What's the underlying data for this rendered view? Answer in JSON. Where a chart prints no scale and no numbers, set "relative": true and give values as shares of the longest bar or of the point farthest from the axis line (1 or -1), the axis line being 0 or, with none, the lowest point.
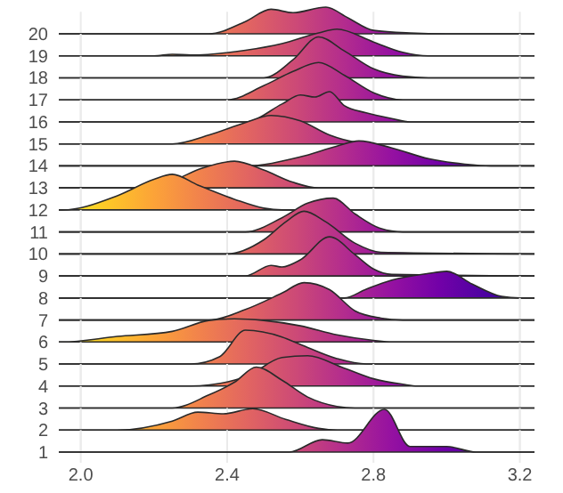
{
  "chart_data": [
    {
      "type": "area",
      "relative": true,
      "xlim": [
        1.94,
        3.24
      ],
      "xticks": [
        {
          "value": 2.0,
          "label": null
        },
        {
          "value": 2.4,
          "label": null
        },
        {
          "value": 2.8,
          "label": null
        },
        {
          "value": 3.2,
          "label": null
        }
      ],
      "grid": "x",
      "tick_labels": false,
      "series": [
        {
          "name": "20",
          "x": [
            1.94,
            2.35,
            2.45,
            2.52,
            2.58,
            2.67,
            2.73,
            2.8,
            2.9,
            3.0,
            3.24
          ],
          "values": [
            0,
            0,
            0.46,
            0.92,
            0.79,
            1,
            0.6,
            0.13,
            0.03,
            0,
            0
          ]
        }
      ]
    },
    {
      "type": "area",
      "relative": true,
      "xlim": [
        1.94,
        3.24
      ],
      "xticks": [
        {
          "value": 2.0,
          "label": null
        },
        {
          "value": 2.4,
          "label": null
        },
        {
          "value": 2.8,
          "label": null
        },
        {
          "value": 3.2,
          "label": null
        }
      ],
      "grid": "x",
      "tick_labels": false,
      "series": [
        {
          "name": "19",
          "x": [
            1.94,
            2.2,
            2.25,
            2.3,
            2.45,
            2.55,
            2.65,
            2.7,
            2.8,
            2.88,
            2.95,
            3.24
          ],
          "values": [
            0,
            0,
            0.06,
            0.03,
            0.21,
            0.46,
            0.86,
            1,
            0.52,
            0.13,
            0,
            0
          ]
        }
      ]
    },
    {
      "type": "area",
      "relative": true,
      "xlim": [
        1.94,
        3.24
      ],
      "xticks": [
        {
          "value": 2.0,
          "label": null
        },
        {
          "value": 2.4,
          "label": null
        },
        {
          "value": 2.8,
          "label": null
        },
        {
          "value": 3.2,
          "label": null
        }
      ],
      "grid": "x",
      "tick_labels": false,
      "series": [
        {
          "name": "18",
          "x": [
            1.94,
            2.5,
            2.58,
            2.65,
            2.72,
            2.8,
            2.88,
            2.95,
            3.24
          ],
          "values": [
            0,
            0,
            0.44,
            1,
            0.66,
            0.22,
            0.04,
            0,
            0
          ]
        }
      ]
    },
    {
      "type": "area",
      "relative": true,
      "xlim": [
        1.94,
        3.24
      ],
      "xticks": [
        {
          "value": 2.0,
          "label": null
        },
        {
          "value": 2.4,
          "label": null
        },
        {
          "value": 2.8,
          "label": null
        },
        {
          "value": 3.2,
          "label": null
        }
      ],
      "grid": "x",
      "tick_labels": false,
      "series": [
        {
          "name": "17",
          "x": [
            1.94,
            2.4,
            2.5,
            2.58,
            2.65,
            2.72,
            2.8,
            2.88,
            3.24
          ],
          "values": [
            0,
            0,
            0.38,
            0.76,
            1,
            0.66,
            0.19,
            0,
            0
          ]
        }
      ]
    },
    {
      "type": "area",
      "relative": true,
      "xlim": [
        1.94,
        3.24
      ],
      "xticks": [
        {
          "value": 2.0,
          "label": null
        },
        {
          "value": 2.4,
          "label": null
        },
        {
          "value": 2.8,
          "label": null
        },
        {
          "value": 3.2,
          "label": null
        }
      ],
      "grid": "x",
      "tick_labels": false,
      "series": [
        {
          "name": "16",
          "x": [
            1.94,
            2.45,
            2.55,
            2.6,
            2.64,
            2.68,
            2.72,
            2.78,
            2.85,
            2.9,
            3.24
          ],
          "values": [
            0,
            0,
            0.59,
            0.89,
            0.82,
            1,
            0.54,
            0.3,
            0.11,
            0,
            0
          ]
        }
      ]
    },
    {
      "type": "area",
      "relative": true,
      "xlim": [
        1.94,
        3.24
      ],
      "xticks": [
        {
          "value": 2.0,
          "label": null
        },
        {
          "value": 2.4,
          "label": null
        },
        {
          "value": 2.8,
          "label": null
        },
        {
          "value": 3.2,
          "label": null
        }
      ],
      "grid": "x",
      "tick_labels": false,
      "series": [
        {
          "name": "15",
          "x": [
            1.94,
            2.25,
            2.35,
            2.45,
            2.52,
            2.6,
            2.68,
            2.75,
            2.8,
            3.24
          ],
          "values": [
            0,
            0,
            0.31,
            0.75,
            1,
            0.81,
            0.31,
            0.06,
            0,
            0
          ]
        }
      ]
    },
    {
      "type": "area",
      "relative": true,
      "xlim": [
        1.94,
        3.24
      ],
      "xticks": [
        {
          "value": 2.0,
          "label": null
        },
        {
          "value": 2.4,
          "label": null
        },
        {
          "value": 2.8,
          "label": null
        },
        {
          "value": 3.2,
          "label": null
        }
      ],
      "grid": "x",
      "tick_labels": false,
      "series": [
        {
          "name": "14",
          "x": [
            1.94,
            2.45,
            2.6,
            2.7,
            2.76,
            2.85,
            2.95,
            3.05,
            3.12,
            3.24
          ],
          "values": [
            0,
            0,
            0.36,
            0.79,
            1,
            0.72,
            0.29,
            0.07,
            0,
            0
          ]
        }
      ]
    },
    {
      "type": "area",
      "relative": true,
      "xlim": [
        1.94,
        3.24
      ],
      "xticks": [
        {
          "value": 2.0,
          "label": null
        },
        {
          "value": 2.4,
          "label": null
        },
        {
          "value": 2.8,
          "label": null
        },
        {
          "value": 3.2,
          "label": null
        }
      ],
      "grid": "x",
      "tick_labels": false,
      "series": [
        {
          "name": "13",
          "x": [
            1.94,
            2.15,
            2.25,
            2.33,
            2.42,
            2.5,
            2.58,
            2.65,
            3.24
          ],
          "values": [
            0,
            0,
            0.27,
            0.73,
            1,
            0.67,
            0.21,
            0,
            0
          ]
        }
      ]
    },
    {
      "type": "area",
      "relative": true,
      "xlim": [
        1.94,
        3.24
      ],
      "xticks": [
        {
          "value": 2.0,
          "label": null
        },
        {
          "value": 2.4,
          "label": null
        },
        {
          "value": 2.8,
          "label": null
        },
        {
          "value": 3.2,
          "label": null
        }
      ],
      "grid": "x",
      "tick_labels": false,
      "series": [
        {
          "name": "12",
          "x": [
            1.94,
            1.95,
            2.1,
            2.2,
            2.25,
            2.32,
            2.42,
            2.5,
            2.55,
            3.24
          ],
          "values": [
            0,
            0,
            0.4,
            0.86,
            1,
            0.7,
            0.3,
            0.05,
            0,
            0
          ]
        }
      ]
    },
    {
      "type": "area",
      "relative": true,
      "xlim": [
        1.94,
        3.24
      ],
      "xticks": [
        {
          "value": 2.0,
          "label": null
        },
        {
          "value": 2.4,
          "label": null
        },
        {
          "value": 2.8,
          "label": null
        },
        {
          "value": 3.2,
          "label": null
        }
      ],
      "grid": "x",
      "tick_labels": false,
      "series": [
        {
          "name": "11",
          "x": [
            1.94,
            2.45,
            2.55,
            2.62,
            2.69,
            2.75,
            2.82,
            2.88,
            3.24
          ],
          "values": [
            0,
            0,
            0.42,
            0.85,
            1,
            0.53,
            0.1,
            0,
            0
          ]
        }
      ]
    },
    {
      "type": "area",
      "relative": true,
      "xlim": [
        1.94,
        3.24
      ],
      "xticks": [
        {
          "value": 2.0,
          "label": null
        },
        {
          "value": 2.4,
          "label": null
        },
        {
          "value": 2.8,
          "label": null
        },
        {
          "value": 3.2,
          "label": null
        }
      ],
      "grid": "x",
      "tick_labels": false,
      "series": [
        {
          "name": "10",
          "x": [
            1.94,
            2.4,
            2.5,
            2.56,
            2.61,
            2.67,
            2.75,
            2.82,
            3.24
          ],
          "values": [
            0,
            0,
            0.33,
            0.75,
            1,
            0.75,
            0.25,
            0.04,
            0
          ]
        }
      ]
    },
    {
      "type": "area",
      "relative": true,
      "xlim": [
        1.94,
        3.24
      ],
      "xticks": [
        {
          "value": 2.0,
          "label": null
        },
        {
          "value": 2.4,
          "label": null
        },
        {
          "value": 2.8,
          "label": null
        },
        {
          "value": 3.2,
          "label": null
        }
      ],
      "grid": "x",
      "tick_labels": false,
      "series": [
        {
          "name": "9",
          "x": [
            1.94,
            2.45,
            2.52,
            2.55,
            2.6,
            2.68,
            2.75,
            2.8,
            2.85,
            3.24
          ],
          "values": [
            0,
            0,
            0.27,
            0.23,
            0.41,
            1,
            0.54,
            0.18,
            0.04,
            0
          ]
        }
      ]
    },
    {
      "type": "area",
      "relative": true,
      "xlim": [
        1.94,
        3.24
      ],
      "xticks": [
        {
          "value": 2.0,
          "label": null
        },
        {
          "value": 2.4,
          "label": null
        },
        {
          "value": 2.8,
          "label": null
        },
        {
          "value": 3.2,
          "label": null
        }
      ],
      "grid": "x",
      "tick_labels": false,
      "series": [
        {
          "name": "8",
          "x": [
            1.94,
            2.72,
            2.78,
            2.85,
            2.95,
            3.0,
            3.07,
            3.15,
            3.2,
            3.24
          ],
          "values": [
            0,
            0,
            0.33,
            0.67,
            0.92,
            1,
            0.52,
            0.06,
            0,
            0
          ]
        }
      ]
    },
    {
      "type": "area",
      "relative": true,
      "xlim": [
        1.94,
        3.24
      ],
      "xticks": [
        {
          "value": 2.0,
          "label": null
        },
        {
          "value": 2.4,
          "label": null
        },
        {
          "value": 2.8,
          "label": null
        },
        {
          "value": 3.2,
          "label": null
        }
      ],
      "grid": "x",
      "tick_labels": false,
      "series": [
        {
          "name": "7",
          "x": [
            1.94,
            2.35,
            2.45,
            2.55,
            2.61,
            2.68,
            2.75,
            2.82,
            2.88,
            3.24
          ],
          "values": [
            0,
            0,
            0.28,
            0.72,
            1,
            0.81,
            0.24,
            0.05,
            0,
            0
          ]
        }
      ]
    },
    {
      "type": "area",
      "relative": true,
      "xlim": [
        1.94,
        3.24
      ],
      "xticks": [
        {
          "value": 2.0,
          "label": null
        },
        {
          "value": 2.4,
          "label": null
        },
        {
          "value": 2.8,
          "label": null
        },
        {
          "value": 3.2,
          "label": null
        }
      ],
      "grid": "x",
      "tick_labels": false,
      "series": [
        {
          "name": "6",
          "x": [
            1.94,
            1.95,
            2.1,
            2.25,
            2.35,
            2.42,
            2.5,
            2.6,
            2.7,
            2.8,
            2.85,
            3.24
          ],
          "values": [
            0,
            0,
            0.24,
            0.46,
            0.93,
            1,
            0.93,
            0.7,
            0.31,
            0.07,
            0,
            0
          ]
        }
      ]
    },
    {
      "type": "area",
      "relative": true,
      "xlim": [
        1.94,
        3.24
      ],
      "xticks": [
        {
          "value": 2.0,
          "label": null
        },
        {
          "value": 2.4,
          "label": null
        },
        {
          "value": 2.8,
          "label": null
        },
        {
          "value": 3.2,
          "label": null
        }
      ],
      "grid": "x",
      "tick_labels": false,
      "series": [
        {
          "name": "5",
          "x": [
            1.94,
            2.3,
            2.38,
            2.45,
            2.55,
            2.6,
            2.7,
            2.78,
            3.24
          ],
          "values": [
            0,
            0,
            0.22,
            1,
            0.8,
            0.58,
            0.16,
            0,
            0
          ]
        }
      ]
    },
    {
      "type": "area",
      "relative": true,
      "xlim": [
        1.94,
        3.24
      ],
      "xticks": [
        {
          "value": 2.0,
          "label": null
        },
        {
          "value": 2.4,
          "label": null
        },
        {
          "value": 2.8,
          "label": null
        },
        {
          "value": 3.2,
          "label": null
        }
      ],
      "grid": "x",
      "tick_labels": false,
      "series": [
        {
          "name": "4",
          "x": [
            1.94,
            2.3,
            2.45,
            2.55,
            2.62,
            2.72,
            2.8,
            2.88,
            2.92,
            3.24
          ],
          "values": [
            0,
            0,
            0.3,
            0.94,
            1,
            0.59,
            0.24,
            0.06,
            0,
            0
          ]
        }
      ]
    },
    {
      "type": "area",
      "relative": true,
      "xlim": [
        1.94,
        3.24
      ],
      "xticks": [
        {
          "value": 2.0,
          "label": null
        },
        {
          "value": 2.4,
          "label": null
        },
        {
          "value": 2.8,
          "label": null
        },
        {
          "value": 3.2,
          "label": null
        }
      ],
      "grid": "x",
      "tick_labels": false,
      "series": [
        {
          "name": "3",
          "x": [
            1.94,
            2.25,
            2.35,
            2.42,
            2.48,
            2.55,
            2.62,
            2.7,
            2.75,
            3.24
          ],
          "values": [
            0,
            0,
            0.32,
            0.63,
            1,
            0.68,
            0.27,
            0.04,
            0,
            0
          ]
        }
      ]
    },
    {
      "type": "area",
      "relative": true,
      "xlim": [
        1.94,
        3.24
      ],
      "xticks": [
        {
          "value": 2.0,
          "label": null
        },
        {
          "value": 2.4,
          "label": null
        },
        {
          "value": 2.8,
          "label": null
        },
        {
          "value": 3.2,
          "label": null
        }
      ],
      "grid": "x",
      "tick_labels": false,
      "series": [
        {
          "name": "2",
          "x": [
            1.94,
            2.1,
            2.25,
            2.32,
            2.39,
            2.47,
            2.56,
            2.65,
            2.7,
            3.24
          ],
          "values": [
            0,
            0,
            0.42,
            0.84,
            0.76,
            1,
            0.5,
            0.08,
            0,
            0
          ]
        }
      ]
    },
    {
      "type": "area",
      "relative": true,
      "xlim": [
        1.94,
        3.24
      ],
      "xticks": [
        {
          "value": 2.0,
          "label": "2.0"
        },
        {
          "value": 2.4,
          "label": "2.4"
        },
        {
          "value": 2.8,
          "label": "2.8"
        },
        {
          "value": 3.2,
          "label": "3.2"
        }
      ],
      "grid": "x",
      "series": [
        {
          "name": "1",
          "x": [
            1.94,
            2.57,
            2.66,
            2.73,
            2.83,
            2.9,
            3.0,
            3.08,
            3.24
          ],
          "values": [
            0,
            0,
            0.29,
            0.21,
            1,
            0.13,
            0.13,
            0,
            0
          ]
        }
      ]
    }
  ]
}
